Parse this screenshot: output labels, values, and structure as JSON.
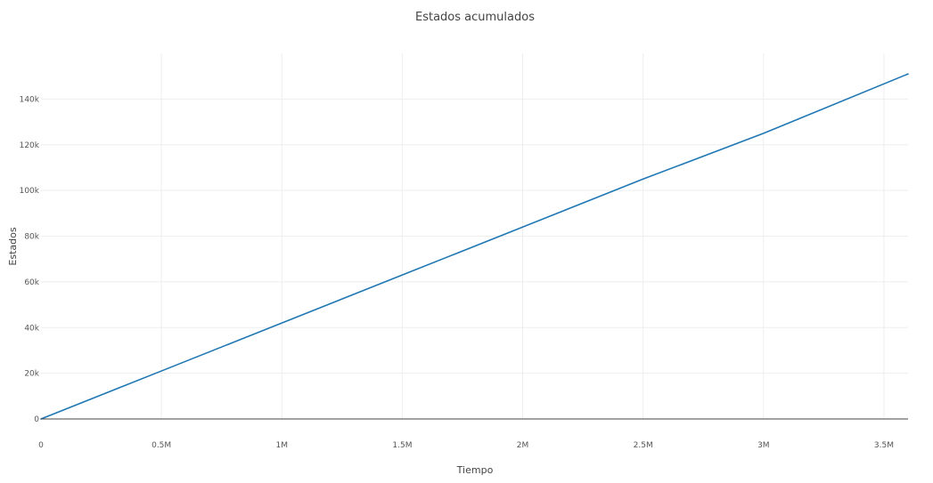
{
  "chart_data": {
    "type": "line",
    "title": "Estados acumulados",
    "xlabel": "Tiempo",
    "ylabel": "Estados",
    "xlim": [
      0,
      3600000
    ],
    "ylim": [
      0,
      160000
    ],
    "x_ticks": [
      {
        "value": 0,
        "label": "0"
      },
      {
        "value": 500000,
        "label": "0.5M"
      },
      {
        "value": 1000000,
        "label": "1M"
      },
      {
        "value": 1500000,
        "label": "1.5M"
      },
      {
        "value": 2000000,
        "label": "2M"
      },
      {
        "value": 2500000,
        "label": "2.5M"
      },
      {
        "value": 3000000,
        "label": "3M"
      },
      {
        "value": 3500000,
        "label": "3.5M"
      }
    ],
    "y_ticks": [
      {
        "value": 0,
        "label": "0"
      },
      {
        "value": 20000,
        "label": "20k"
      },
      {
        "value": 40000,
        "label": "40k"
      },
      {
        "value": 60000,
        "label": "60k"
      },
      {
        "value": 80000,
        "label": "80k"
      },
      {
        "value": 100000,
        "label": "100k"
      },
      {
        "value": 120000,
        "label": "120k"
      },
      {
        "value": 140000,
        "label": "140k"
      }
    ],
    "grid": true,
    "series": [
      {
        "color": "#1f77b4",
        "points": [
          {
            "x": 0,
            "y": 0
          },
          {
            "x": 500000,
            "y": 21000
          },
          {
            "x": 1000000,
            "y": 42000
          },
          {
            "x": 1500000,
            "y": 63000
          },
          {
            "x": 2000000,
            "y": 84000
          },
          {
            "x": 2500000,
            "y": 105000
          },
          {
            "x": 3000000,
            "y": 125000
          },
          {
            "x": 3600000,
            "y": 151000
          }
        ]
      }
    ],
    "colors": {
      "grid": "#eeeeee",
      "zero_line": "#444444"
    }
  }
}
